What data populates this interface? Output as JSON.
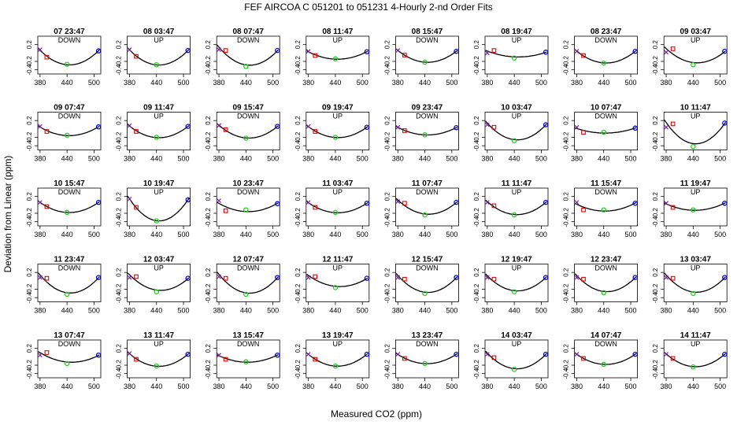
{
  "figure": {
    "title": "FEF   AIRCOA C   051201 to 051231   4-Hourly 2-nd Order Fits",
    "xlabel": "Measured CO2 (ppm)",
    "ylabel": "Deviation from Linear (ppm)"
  },
  "chart_data": {
    "type": "scatter",
    "title": "FEF   AIRCOA C   051201 to 051231   4-Hourly 2-nd Order Fits",
    "xlabel": "Measured CO2 (ppm)",
    "ylabel": "Deviation from Linear (ppm)",
    "xlim": [
      375,
      515
    ],
    "ylim": [
      -0.5,
      0.4
    ],
    "xticks": [
      "380",
      "440",
      "500"
    ],
    "yticks": [
      "-0.4",
      "-0.2",
      "0.2"
    ],
    "grid": false,
    "marker_x": [
      380,
      395,
      440,
      510
    ],
    "marker_colors": [
      "#7a1fa2",
      "#e00000",
      "#22cc22",
      "#0000cc"
    ],
    "curve_color": "#000000",
    "panels": [
      {
        "label": "07 23:47",
        "dir": "DOWN",
        "y": [
          0.08,
          -0.1,
          -0.27,
          0.05
        ]
      },
      {
        "label": "08 03:47",
        "dir": "UP",
        "y": [
          0.08,
          -0.08,
          -0.28,
          0.06
        ]
      },
      {
        "label": "08 07:47",
        "dir": "DOWN",
        "y": [
          0.08,
          0.06,
          -0.32,
          0.06
        ]
      },
      {
        "label": "08 11:47",
        "dir": "UP",
        "y": [
          0.04,
          -0.06,
          -0.14,
          0.03
        ]
      },
      {
        "label": "08 15:47",
        "dir": "DOWN",
        "y": [
          0.06,
          -0.05,
          -0.22,
          0.04
        ]
      },
      {
        "label": "08 19:47",
        "dir": "UP",
        "y": [
          0.0,
          0.06,
          -0.12,
          0.02
        ]
      },
      {
        "label": "08 23:47",
        "dir": "DOWN",
        "y": [
          0.04,
          -0.06,
          -0.24,
          0.04
        ]
      },
      {
        "label": "09 03:47",
        "dir": "UP",
        "y": [
          0.02,
          0.1,
          -0.28,
          0.04
        ]
      },
      {
        "label": "09 07:47",
        "dir": "DOWN",
        "y": [
          0.06,
          -0.06,
          -0.15,
          0.05
        ]
      },
      {
        "label": "09 11:47",
        "dir": "UP",
        "y": [
          0.08,
          -0.06,
          -0.2,
          0.06
        ]
      },
      {
        "label": "09 15:47",
        "dir": "DOWN",
        "y": [
          0.08,
          -0.02,
          -0.22,
          0.06
        ]
      },
      {
        "label": "09 19:47",
        "dir": "UP",
        "y": [
          0.06,
          -0.06,
          -0.2,
          0.04
        ]
      },
      {
        "label": "09 23:47",
        "dir": "DOWN",
        "y": [
          0.04,
          -0.04,
          -0.14,
          0.03
        ]
      },
      {
        "label": "10 03:47",
        "dir": "UP",
        "y": [
          0.1,
          0.04,
          -0.28,
          0.1
        ]
      },
      {
        "label": "10 07:47",
        "dir": "DOWN",
        "y": [
          0.04,
          -0.08,
          -0.08,
          0.02
        ]
      },
      {
        "label": "10 11:47",
        "dir": "UP",
        "y": [
          0.04,
          0.12,
          -0.42,
          0.14
        ]
      },
      {
        "label": "10 15:47",
        "dir": "DOWN",
        "y": [
          0.06,
          -0.04,
          -0.18,
          0.06
        ]
      },
      {
        "label": "10 19:47",
        "dir": "UP",
        "y": [
          0.14,
          -0.06,
          -0.38,
          0.12
        ]
      },
      {
        "label": "10 23:47",
        "dir": "DOWN",
        "y": [
          0.1,
          -0.14,
          -0.12,
          0.03
        ]
      },
      {
        "label": "11 03:47",
        "dir": "UP",
        "y": [
          0.06,
          -0.06,
          -0.18,
          0.04
        ]
      },
      {
        "label": "11 07:47",
        "dir": "DOWN",
        "y": [
          0.08,
          0.04,
          -0.24,
          0.06
        ]
      },
      {
        "label": "11 11:47",
        "dir": "UP",
        "y": [
          0.06,
          -0.02,
          -0.24,
          0.06
        ]
      },
      {
        "label": "11 15:47",
        "dir": "DOWN",
        "y": [
          0.06,
          -0.12,
          -0.12,
          0.04
        ]
      },
      {
        "label": "11 19:47",
        "dir": "UP",
        "y": [
          0.04,
          -0.06,
          -0.12,
          0.04
        ]
      },
      {
        "label": "11 23:47",
        "dir": "DOWN",
        "y": [
          0.08,
          0.06,
          -0.32,
          0.08
        ]
      },
      {
        "label": "12 03:47",
        "dir": "UP",
        "y": [
          0.08,
          0.1,
          -0.26,
          0.06
        ]
      },
      {
        "label": "12 07:47",
        "dir": "DOWN",
        "y": [
          0.1,
          0.06,
          -0.32,
          0.08
        ]
      },
      {
        "label": "12 11:47",
        "dir": "UP",
        "y": [
          0.08,
          0.1,
          -0.16,
          0.06
        ]
      },
      {
        "label": "12 15:47",
        "dir": "DOWN",
        "y": [
          0.08,
          0.04,
          -0.3,
          0.08
        ]
      },
      {
        "label": "12 19:47",
        "dir": "UP",
        "y": [
          0.08,
          0.04,
          -0.26,
          0.08
        ]
      },
      {
        "label": "12 23:47",
        "dir": "DOWN",
        "y": [
          0.08,
          0.04,
          -0.28,
          0.08
        ]
      },
      {
        "label": "13 03:47",
        "dir": "UP",
        "y": [
          0.08,
          0.06,
          -0.3,
          0.08
        ]
      },
      {
        "label": "13 07:47",
        "dir": "DOWN",
        "y": [
          0.04,
          0.1,
          -0.16,
          0.04
        ]
      },
      {
        "label": "13 11:47",
        "dir": "UP",
        "y": [
          0.08,
          -0.06,
          -0.22,
          0.06
        ]
      },
      {
        "label": "13 15:47",
        "dir": "DOWN",
        "y": [
          0.04,
          -0.06,
          -0.12,
          0.04
        ]
      },
      {
        "label": "13 19:47",
        "dir": "UP",
        "y": [
          0.06,
          -0.06,
          -0.22,
          0.06
        ]
      },
      {
        "label": "13 23:47",
        "dir": "DOWN",
        "y": [
          0.06,
          -0.04,
          -0.16,
          0.06
        ]
      },
      {
        "label": "14 03:47",
        "dir": "UP",
        "y": [
          0.06,
          -0.02,
          -0.3,
          0.06
        ]
      },
      {
        "label": "14 07:47",
        "dir": "DOWN",
        "y": [
          0.06,
          -0.04,
          -0.18,
          0.06
        ]
      },
      {
        "label": "14 11:47",
        "dir": "UP",
        "y": [
          0.06,
          -0.04,
          -0.24,
          0.06
        ]
      }
    ]
  }
}
